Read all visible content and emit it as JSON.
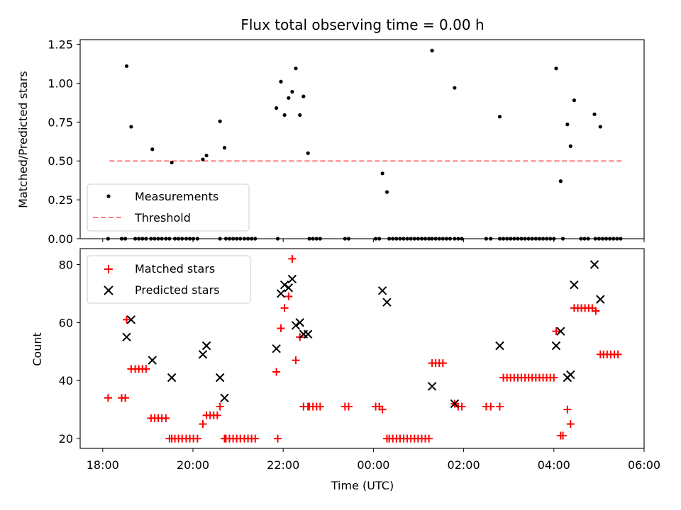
{
  "chart_data": [
    {
      "type": "scatter",
      "title": "Flux total observing time = 0.00 h",
      "xlabel": "",
      "ylabel": "Matched/Predicted stars",
      "xlim_hours": [
        17.5,
        30.0
      ],
      "ylim": [
        0,
        1.28
      ],
      "yticks": [
        0.0,
        0.25,
        0.5,
        0.75,
        1.0,
        1.25
      ],
      "ytick_labels": [
        "0.00",
        "0.25",
        "0.50",
        "0.75",
        "1.00",
        "1.25"
      ],
      "legend": {
        "position": "lower-left",
        "entries": [
          "Measurements",
          "Threshold"
        ]
      },
      "threshold": {
        "name": "Threshold",
        "y": 0.5,
        "x_start": 18.15,
        "x_end": 29.5,
        "color": "#ff7f7f"
      },
      "measurements": {
        "name": "Measurements",
        "color": "#000000",
        "x": [
          18.53,
          18.63,
          19.1,
          19.53,
          20.22,
          20.3,
          20.6,
          20.7,
          21.85,
          21.95,
          22.03,
          22.12,
          22.2,
          22.28,
          22.37,
          22.45,
          22.55,
          24.2,
          24.3,
          25.3,
          25.8,
          26.8,
          28.05,
          28.15,
          28.3,
          28.37,
          28.45,
          28.9,
          29.03
        ],
        "y": [
          1.11,
          0.72,
          0.575,
          0.49,
          0.51,
          0.535,
          0.755,
          0.585,
          0.84,
          1.01,
          0.795,
          0.905,
          0.945,
          1.095,
          0.795,
          0.915,
          0.55,
          0.42,
          0.3,
          1.21,
          0.97,
          0.785,
          1.095,
          0.37,
          0.735,
          0.595,
          0.89,
          0.8,
          0.72
        ]
      },
      "zero_measurements_x": [
        18.12,
        18.42,
        18.5,
        18.72,
        18.8,
        18.88,
        18.96,
        19.07,
        19.15,
        19.23,
        19.31,
        19.4,
        19.48,
        19.6,
        19.68,
        19.76,
        19.85,
        19.93,
        20.01,
        20.1,
        20.6,
        20.73,
        20.81,
        20.89,
        20.97,
        21.05,
        21.14,
        21.22,
        21.3,
        21.38,
        21.88,
        22.58,
        22.66,
        22.74,
        22.82,
        23.37,
        23.45,
        24.05,
        24.13,
        24.35,
        24.43,
        24.51,
        24.59,
        24.67,
        24.75,
        24.83,
        24.91,
        24.99,
        25.07,
        25.15,
        25.23,
        25.3,
        25.38,
        25.46,
        25.54,
        25.62,
        25.7,
        25.8,
        25.88,
        25.96,
        26.5,
        26.6,
        26.8,
        26.88,
        26.96,
        27.04,
        27.12,
        27.2,
        27.28,
        27.36,
        27.44,
        27.52,
        27.6,
        27.68,
        27.76,
        27.84,
        27.92,
        28.0,
        28.2,
        28.6,
        28.68,
        28.76,
        28.92,
        29.0,
        29.08,
        29.16,
        29.24,
        29.32,
        29.4,
        29.48
      ]
    },
    {
      "type": "scatter",
      "title": "",
      "xlabel": "Time (UTC)",
      "ylabel": "Count",
      "xlim_hours": [
        17.5,
        30.0
      ],
      "ylim": [
        16.6,
        85.5
      ],
      "yticks": [
        20,
        40,
        60,
        80
      ],
      "ytick_labels": [
        "20",
        "40",
        "60",
        "80"
      ],
      "xticks_hours": [
        18,
        20,
        22,
        24,
        26,
        28,
        30
      ],
      "xtick_labels": [
        "18:00",
        "20:00",
        "22:00",
        "00:00",
        "02:00",
        "04:00",
        "06:00"
      ],
      "legend": {
        "position": "upper-left",
        "entries": [
          "Matched stars",
          "Predicted stars"
        ]
      },
      "series": [
        {
          "name": "Matched stars",
          "marker": "plus",
          "color": "#ff0000",
          "x": [
            18.12,
            18.42,
            18.5,
            18.53,
            18.63,
            18.72,
            18.8,
            18.88,
            18.96,
            19.07,
            19.15,
            19.23,
            19.31,
            19.4,
            19.48,
            19.53,
            19.6,
            19.68,
            19.76,
            19.85,
            19.93,
            20.01,
            20.1,
            20.22,
            20.3,
            20.38,
            20.46,
            20.54,
            20.6,
            20.7,
            20.73,
            20.81,
            20.89,
            20.97,
            21.05,
            21.14,
            21.22,
            21.3,
            21.38,
            21.85,
            21.88,
            21.95,
            22.03,
            22.12,
            22.2,
            22.28,
            22.37,
            22.45,
            22.55,
            22.58,
            22.66,
            22.74,
            22.82,
            23.37,
            23.45,
            24.05,
            24.13,
            24.2,
            24.3,
            24.35,
            24.43,
            24.51,
            24.59,
            24.67,
            24.75,
            24.83,
            24.91,
            24.99,
            25.07,
            25.15,
            25.23,
            25.3,
            25.38,
            25.46,
            25.54,
            25.8,
            25.88,
            25.96,
            26.5,
            26.6,
            26.8,
            26.88,
            26.96,
            27.04,
            27.12,
            27.2,
            27.28,
            27.36,
            27.44,
            27.52,
            27.6,
            27.68,
            27.76,
            27.84,
            27.92,
            28.0,
            28.05,
            28.15,
            28.2,
            28.3,
            28.37,
            28.45,
            28.53,
            28.61,
            28.69,
            28.77,
            28.85,
            28.93,
            29.03,
            29.1,
            29.18,
            29.26,
            29.34,
            29.42
          ],
          "y": [
            34,
            34,
            34,
            61,
            44,
            44,
            44,
            44,
            44,
            27,
            27,
            27,
            27,
            27,
            20,
            20,
            20,
            20,
            20,
            20,
            20,
            20,
            20,
            25,
            28,
            28,
            28,
            28,
            31,
            20,
            20,
            20,
            20,
            20,
            20,
            20,
            20,
            20,
            20,
            43,
            20,
            58,
            65,
            69,
            82,
            47,
            55,
            31,
            31,
            31,
            31,
            31,
            31,
            31,
            31,
            31,
            31,
            30,
            20,
            20,
            20,
            20,
            20,
            20,
            20,
            20,
            20,
            20,
            20,
            20,
            20,
            46,
            46,
            46,
            46,
            32,
            31,
            31,
            31,
            31,
            31,
            41,
            41,
            41,
            41,
            41,
            41,
            41,
            41,
            41,
            41,
            41,
            41,
            41,
            41,
            41,
            57,
            21,
            21,
            30,
            25,
            65,
            65,
            65,
            65,
            65,
            65,
            64,
            49,
            49,
            49,
            49,
            49,
            49
          ]
        },
        {
          "name": "Predicted stars",
          "marker": "x",
          "color": "#000000",
          "x": [
            18.53,
            18.63,
            19.1,
            19.53,
            20.22,
            20.3,
            20.6,
            20.7,
            21.85,
            21.95,
            22.03,
            22.12,
            22.2,
            22.28,
            22.37,
            22.45,
            22.55,
            24.2,
            24.3,
            25.3,
            25.8,
            26.8,
            28.05,
            28.15,
            28.3,
            28.37,
            28.45,
            28.9,
            29.03
          ],
          "y": [
            55,
            61,
            47,
            41,
            49,
            52,
            41,
            34,
            51,
            70,
            73,
            72,
            75,
            59,
            60,
            56,
            56,
            71,
            67,
            38,
            32,
            52,
            52,
            57,
            41,
            42,
            73,
            80,
            68
          ]
        }
      ]
    }
  ]
}
